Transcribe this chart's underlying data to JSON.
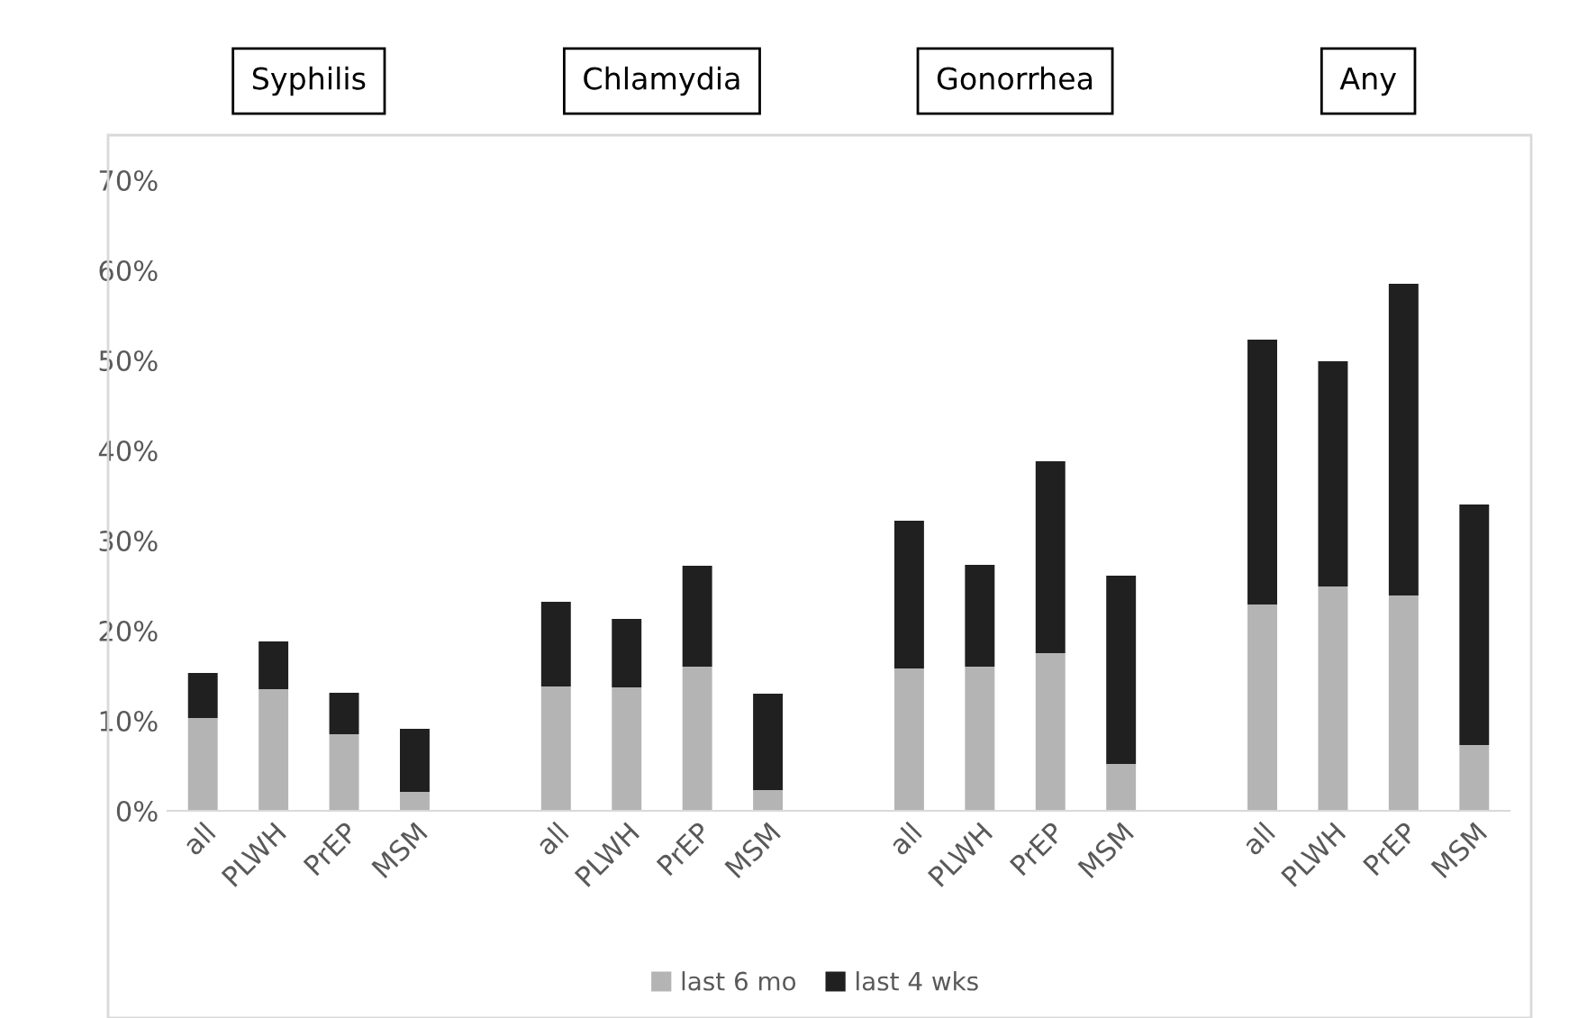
{
  "chart_data": {
    "type": "bar",
    "stacked": true,
    "categories": [
      "all",
      "PLWH",
      "PrEP",
      "MSM",
      null,
      "all",
      "PLWH",
      "PrEP",
      "MSM",
      null,
      "all",
      "PLWH",
      "PrEP",
      "MSM",
      null,
      "all",
      "PLWH",
      "PrEP",
      "MSM"
    ],
    "series": [
      {
        "name": "last 6 mo",
        "color": "#b4b4b4",
        "values": [
          10.3,
          13.5,
          8.5,
          2.1,
          null,
          13.8,
          13.7,
          16.0,
          2.3,
          null,
          15.8,
          16.0,
          17.5,
          5.2,
          null,
          22.9,
          24.9,
          23.9,
          7.3
        ]
      },
      {
        "name": "last 4 wks",
        "color": "#202020",
        "values": [
          5.0,
          5.3,
          4.6,
          7.0,
          null,
          9.4,
          7.6,
          11.2,
          10.7,
          null,
          16.4,
          11.3,
          21.3,
          20.9,
          null,
          29.4,
          25.0,
          34.6,
          26.7
        ]
      }
    ],
    "annotations": [
      "Syphilis",
      "Chlamydia",
      "Gonorrhea",
      "Any"
    ],
    "ylim": [
      0,
      70
    ],
    "yticks": [
      {
        "value": 0,
        "label": "0%"
      },
      {
        "value": 10,
        "label": "10%"
      },
      {
        "value": 20,
        "label": "20%"
      },
      {
        "value": 30,
        "label": "30%"
      },
      {
        "value": 40,
        "label": "40%"
      },
      {
        "value": 50,
        "label": "50%"
      },
      {
        "value": 60,
        "label": "60%"
      },
      {
        "value": 70,
        "label": "70%"
      }
    ],
    "grid": false,
    "legend": "bottom"
  }
}
